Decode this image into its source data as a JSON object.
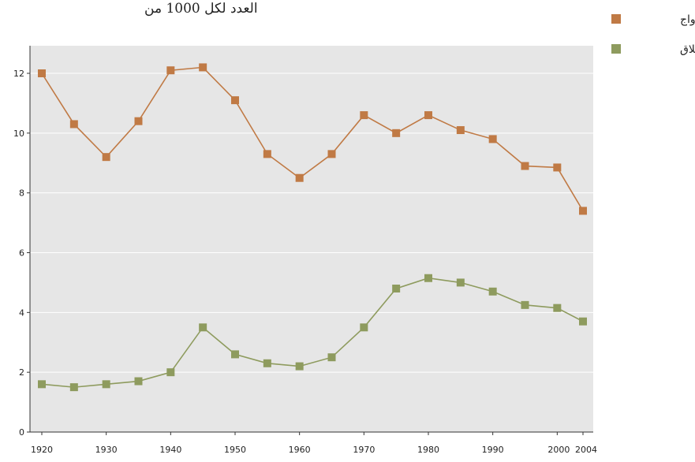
{
  "chart_data": {
    "type": "line",
    "title": "العدد لكل 1000 من",
    "xlabel": "",
    "ylabel": "",
    "x": [
      1920,
      1925,
      1930,
      1935,
      1940,
      1945,
      1950,
      1955,
      1960,
      1965,
      1970,
      1975,
      1980,
      1985,
      1990,
      1995,
      2000,
      2004
    ],
    "x_tick_labels": [
      "1920",
      "1930",
      "1940",
      "1950",
      "1960",
      "1970",
      "1980",
      "1990",
      "2000",
      "2004"
    ],
    "y_tick_labels": [
      "0",
      "2",
      "4",
      "6",
      "8",
      "10",
      "12"
    ],
    "xlim": [
      1920,
      2004
    ],
    "ylim": [
      0,
      13
    ],
    "grid": true,
    "legend_position": "top-right",
    "series": [
      {
        "name": "الزواج",
        "color": "#c07a45",
        "values": [
          12.0,
          10.3,
          9.2,
          10.4,
          12.1,
          12.2,
          11.1,
          9.3,
          8.5,
          9.3,
          10.6,
          10.0,
          10.6,
          10.1,
          9.8,
          8.9,
          8.85,
          7.4
        ]
      },
      {
        "name": "الطلاق",
        "color": "#8e9b5e",
        "values": [
          1.6,
          1.5,
          1.6,
          1.7,
          2.0,
          3.5,
          2.6,
          2.3,
          2.2,
          2.5,
          3.5,
          4.8,
          5.15,
          5.0,
          4.7,
          4.25,
          4.15,
          3.7
        ]
      }
    ]
  }
}
